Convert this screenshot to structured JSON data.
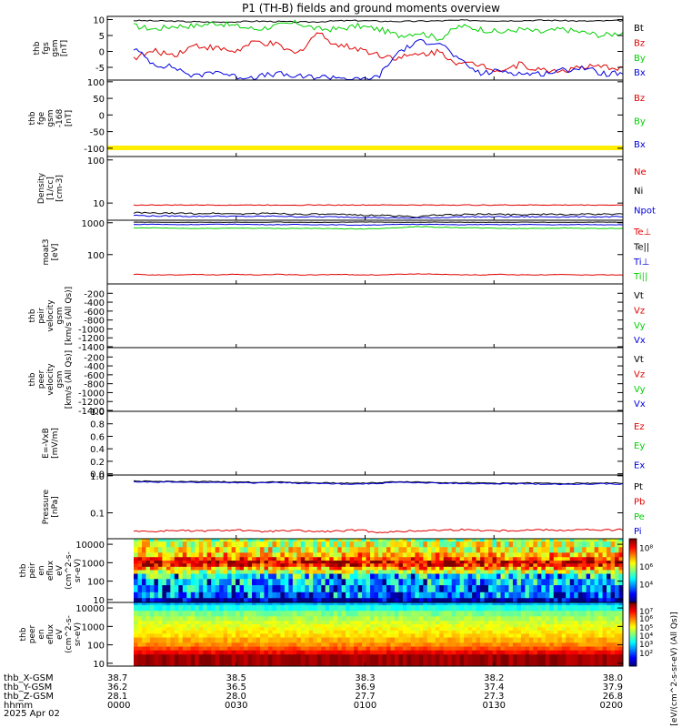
{
  "title": "P1 (TH-B) fields and ground moments overview",
  "colors": {
    "black": "#000000",
    "red": "#e00000",
    "green": "#00d000",
    "blue": "#0000e0",
    "yellow": "#ffee00"
  },
  "chart_data": [
    {
      "type": "line",
      "ylabel_lines": [
        "thb",
        "fgs",
        "gsm",
        "[nT]"
      ],
      "ylim": [
        -9,
        11
      ],
      "yticks": [
        {
          "v": 10,
          "label": "10"
        },
        {
          "v": 5,
          "label": "5"
        },
        {
          "v": 0,
          "label": "0"
        },
        {
          "v": -5,
          "label": "-5"
        }
      ],
      "series": [
        {
          "name": "Bt",
          "color": "black",
          "values": [
            9.7,
            9.6,
            9.5,
            9.3,
            9.2,
            9.3,
            9.5,
            9.4,
            9.2,
            9.3,
            9.6,
            9.7,
            9.5,
            9.4,
            9.5,
            9.6,
            9.8,
            9.7,
            9.6,
            9.7,
            9.8,
            9.7,
            9.5,
            9.6,
            9.7
          ],
          "noise": 0.2
        },
        {
          "name": "Bz",
          "color": "red",
          "values": [
            -2,
            0,
            -1,
            2,
            1,
            0,
            3,
            2,
            -1,
            6,
            2,
            1,
            -1,
            -2,
            -1,
            0,
            -4,
            -4,
            -6,
            -4,
            -6,
            -6,
            -5,
            -5,
            -5
          ],
          "noise": 1.0
        },
        {
          "name": "By",
          "color": "green",
          "values": [
            8,
            7,
            8,
            8,
            9,
            8,
            7,
            8,
            9,
            7,
            7,
            8,
            7,
            5,
            6,
            4,
            8,
            7,
            6,
            7,
            6,
            7,
            6,
            5,
            6
          ],
          "noise": 0.9
        },
        {
          "name": "Bx",
          "color": "blue",
          "values": [
            1,
            -4,
            -5,
            -8,
            -6,
            -8,
            -8,
            -7,
            -8,
            -8,
            -8,
            -9,
            -8,
            0,
            3,
            3,
            -3,
            -7,
            -6,
            -7,
            -7,
            -6,
            -5,
            -7,
            -7
          ],
          "noise": 0.9
        }
      ]
    },
    {
      "type": "line",
      "ylabel_lines": [
        "thb",
        "fge",
        "gsm",
        "-168",
        "[nT]"
      ],
      "ylim": [
        -125,
        105
      ],
      "yticks": [
        {
          "v": 100,
          "label": "100"
        },
        {
          "v": 50,
          "label": "50"
        },
        {
          "v": 0,
          "label": "0"
        },
        {
          "v": -50,
          "label": "-50"
        },
        {
          "v": -100,
          "label": "-100"
        }
      ],
      "series": [
        {
          "name": "Bz",
          "color": "red",
          "values": []
        },
        {
          "name": "By",
          "color": "green",
          "values": []
        },
        {
          "name": "Bx",
          "color": "blue",
          "values": []
        }
      ]
    },
    {
      "type": "line",
      "ylabel_lines": [
        "Density",
        "[1/cc]",
        "[cm-3]"
      ],
      "yscale": "log",
      "ylim": [
        4,
        120
      ],
      "yticks": [
        {
          "v": 100,
          "label": "100"
        },
        {
          "v": 10,
          "label": "10"
        }
      ],
      "series": [
        {
          "name": "Ne",
          "color": "red",
          "values": [
            9,
            9,
            9,
            9,
            9,
            9,
            9,
            9,
            9,
            9,
            9,
            9,
            9,
            9,
            9,
            9,
            9,
            9,
            9,
            9,
            9,
            9,
            9,
            9,
            9
          ],
          "noise": 0.02
        },
        {
          "name": "Ni",
          "color": "black",
          "values": [
            6,
            5.8,
            5.8,
            5.7,
            5.8,
            5.6,
            5.7,
            5.8,
            5.5,
            5.5,
            5.4,
            5.3,
            5.2,
            5.0,
            4.8,
            5.3,
            5.4,
            5.5,
            5.5,
            5.4,
            5.5,
            5.4,
            5.5,
            5.5,
            5.5
          ],
          "noise": 0.04
        },
        {
          "name": "Npot",
          "color": "blue",
          "values": [
            5.2,
            5,
            5,
            4.9,
            5,
            4.9,
            4.9,
            5,
            4.8,
            4.8,
            4.8,
            4.7,
            4.6,
            4.5,
            4.5,
            4.6,
            4.8,
            4.8,
            4.8,
            4.8,
            4.8,
            4.8,
            4.8,
            4.8,
            4.8
          ],
          "noise": 0.03
        }
      ]
    },
    {
      "type": "line",
      "ylabel_lines": [
        "moat3",
        "[eV]"
      ],
      "yscale": "log",
      "ylim": [
        12,
        1200
      ],
      "yticks": [
        {
          "v": 1000,
          "label": "1000"
        },
        {
          "v": 100,
          "label": "100"
        }
      ],
      "series": [
        {
          "name": "Te⊥",
          "color": "red",
          "values": [
            24,
            23,
            23,
            24,
            23,
            24,
            23,
            24,
            23,
            23,
            24,
            23,
            23,
            24,
            25,
            24,
            23,
            23,
            24,
            23,
            23,
            24,
            23,
            23,
            23
          ],
          "noise": 0.02
        },
        {
          "name": "Te||",
          "color": "black",
          "values": [
            1050,
            1040,
            1030,
            1040,
            1030,
            1040,
            1030,
            1050,
            1040,
            1030,
            1040,
            1050,
            1060,
            1030,
            1040,
            1050,
            1040,
            1030,
            1040,
            1050,
            1040,
            1030,
            1040,
            1050,
            1040
          ],
          "noise": 0.01
        },
        {
          "name": "Ti⊥",
          "color": "blue",
          "values": [
            880,
            900,
            870,
            880,
            890,
            900,
            880,
            870,
            880,
            870,
            860,
            840,
            860,
            880,
            900,
            880,
            860,
            880,
            870,
            880,
            870,
            860,
            880,
            870,
            870
          ],
          "noise": 0.02
        },
        {
          "name": "Ti||",
          "color": "green",
          "values": [
            680,
            690,
            670,
            660,
            670,
            680,
            670,
            660,
            670,
            660,
            650,
            640,
            660,
            700,
            760,
            720,
            700,
            680,
            670,
            660,
            670,
            680,
            670,
            660,
            660
          ],
          "noise": 0.02
        }
      ]
    },
    {
      "type": "line",
      "ylabel_lines": [
        "thb",
        "peir",
        "velocity",
        "gsm",
        "[km/s (All Qs)]"
      ],
      "ylim": [
        -1420,
        10
      ],
      "yticks": [
        {
          "v": -200,
          "label": "-200"
        },
        {
          "v": -400,
          "label": "-400"
        },
        {
          "v": -600,
          "label": "-600"
        },
        {
          "v": -800,
          "label": "-800"
        },
        {
          "v": -1000,
          "label": "-1000"
        },
        {
          "v": -1200,
          "label": "-1200"
        },
        {
          "v": -1400,
          "label": "-1400"
        }
      ],
      "series": [
        {
          "name": "Vt",
          "color": "black",
          "values": []
        },
        {
          "name": "Vz",
          "color": "red",
          "values": []
        },
        {
          "name": "Vy",
          "color": "green",
          "values": []
        },
        {
          "name": "Vx",
          "color": "blue",
          "values": []
        }
      ]
    },
    {
      "type": "line",
      "ylabel_lines": [
        "thb",
        "peer",
        "velocity",
        "gsm",
        "[km/s (All Qs)]"
      ],
      "ylim": [
        -1420,
        10
      ],
      "yticks": [
        {
          "v": -200,
          "label": "-200"
        },
        {
          "v": -400,
          "label": "-400"
        },
        {
          "v": -600,
          "label": "-600"
        },
        {
          "v": -800,
          "label": "-800"
        },
        {
          "v": -1000,
          "label": "-1000"
        },
        {
          "v": -1200,
          "label": "-1200"
        },
        {
          "v": -1400,
          "label": "-1400"
        }
      ],
      "series": [
        {
          "name": "Vt",
          "color": "black",
          "values": []
        },
        {
          "name": "Vz",
          "color": "red",
          "values": []
        },
        {
          "name": "Vy",
          "color": "green",
          "values": []
        },
        {
          "name": "Vx",
          "color": "blue",
          "values": []
        }
      ]
    },
    {
      "type": "line",
      "ylabel_lines": [
        "E=-VxB",
        "[mV/m]"
      ],
      "ylim": [
        -0.02,
        1.0
      ],
      "yticks": [
        {
          "v": 1.0,
          "label": "1.0"
        },
        {
          "v": 0.8,
          "label": "0.8"
        },
        {
          "v": 0.6,
          "label": "0.6"
        },
        {
          "v": 0.4,
          "label": "0.4"
        },
        {
          "v": 0.2,
          "label": "0.2"
        },
        {
          "v": 0.0,
          "label": "0.0"
        }
      ],
      "series": [
        {
          "name": "Ez",
          "color": "red",
          "values": []
        },
        {
          "name": "Ey",
          "color": "green",
          "values": []
        },
        {
          "name": "Ex",
          "color": "blue",
          "values": []
        }
      ]
    },
    {
      "type": "line",
      "ylabel_lines": [
        "Pressure",
        "[nPa]"
      ],
      "yscale": "log",
      "ylim": [
        0.02,
        1.05
      ],
      "yticks": [
        {
          "v": 1.0,
          "label": "1.0"
        },
        {
          "v": 0.1,
          "label": "0.1"
        }
      ],
      "series": [
        {
          "name": "Pt",
          "color": "black",
          "values": [
            0.72,
            0.7,
            0.71,
            0.69,
            0.7,
            0.68,
            0.67,
            0.69,
            0.66,
            0.65,
            0.64,
            0.63,
            0.65,
            0.7,
            0.68,
            0.66,
            0.65,
            0.64,
            0.63,
            0.64,
            0.63,
            0.62,
            0.63,
            0.64,
            0.63
          ],
          "noise": 0.03
        },
        {
          "name": "Pb",
          "color": "red",
          "values": [
            0.033,
            0.031,
            0.034,
            0.032,
            0.033,
            0.035,
            0.031,
            0.032,
            0.033,
            0.031,
            0.032,
            0.034,
            0.03,
            0.031,
            0.033,
            0.034,
            0.035,
            0.034,
            0.033,
            0.034,
            0.035,
            0.034,
            0.035,
            0.034,
            0.035
          ],
          "noise": 0.06
        },
        {
          "name": "Pe",
          "color": "green",
          "values": []
        },
        {
          "name": "Pi",
          "color": "blue",
          "values": [
            0.69,
            0.67,
            0.68,
            0.66,
            0.67,
            0.65,
            0.64,
            0.66,
            0.63,
            0.62,
            0.61,
            0.6,
            0.62,
            0.67,
            0.65,
            0.63,
            0.62,
            0.61,
            0.6,
            0.61,
            0.6,
            0.59,
            0.6,
            0.61,
            0.6
          ],
          "noise": 0.03
        }
      ]
    },
    {
      "type": "heatmap",
      "ylabel_lines": [
        "thb",
        "peir",
        "en",
        "eflux",
        "eV",
        "(cm^2-s-",
        "sr-eV)"
      ],
      "yscale": "log",
      "ylim": [
        7,
        20000
      ],
      "yticks": [
        {
          "v": 10000,
          "label": "10000"
        },
        {
          "v": 1000,
          "label": "1000"
        },
        {
          "v": 100,
          "label": "100"
        },
        {
          "v": 10,
          "label": "10"
        }
      ],
      "bands": [
        {
          "from": 14000,
          "to": 20000,
          "level": 0.55
        },
        {
          "from": 7000,
          "to": 14000,
          "level": 0.58
        },
        {
          "from": 3500,
          "to": 7000,
          "level": 0.62
        },
        {
          "from": 2000,
          "to": 3500,
          "level": 0.7
        },
        {
          "from": 1300,
          "to": 2000,
          "level": 0.8
        },
        {
          "from": 900,
          "to": 1300,
          "level": 0.93
        },
        {
          "from": 600,
          "to": 900,
          "level": 0.85
        },
        {
          "from": 400,
          "to": 600,
          "level": 0.72
        },
        {
          "from": 250,
          "to": 400,
          "level": 0.55
        },
        {
          "from": 130,
          "to": 250,
          "level": 0.42
        },
        {
          "from": 60,
          "to": 130,
          "level": 0.35
        },
        {
          "from": 25,
          "to": 60,
          "level": 0.3
        },
        {
          "from": 12,
          "to": 25,
          "level": 0.28
        },
        {
          "from": 7,
          "to": 12,
          "level": 0.05
        }
      ],
      "cbar_ticks": [
        {
          "frac": 0.85,
          "label": "10⁸"
        },
        {
          "frac": 0.56,
          "label": "10⁶"
        },
        {
          "frac": 0.28,
          "label": "10⁴"
        }
      ]
    },
    {
      "type": "heatmap",
      "ylabel_lines": [
        "thb",
        "peer",
        "en",
        "eflux",
        "eV",
        "(cm^2-s-",
        "sr-eV)"
      ],
      "yscale": "log",
      "ylim": [
        7,
        20000
      ],
      "yticks": [
        {
          "v": 10000,
          "label": "10000"
        },
        {
          "v": 1000,
          "label": "1000"
        },
        {
          "v": 100,
          "label": "100"
        },
        {
          "v": 10,
          "label": "10"
        }
      ],
      "bands": [
        {
          "from": 14000,
          "to": 20000,
          "level": 0.3
        },
        {
          "from": 7000,
          "to": 14000,
          "level": 0.4
        },
        {
          "from": 3500,
          "to": 7000,
          "level": 0.5
        },
        {
          "from": 2000,
          "to": 3500,
          "level": 0.55
        },
        {
          "from": 1300,
          "to": 2000,
          "level": 0.58
        },
        {
          "from": 900,
          "to": 1300,
          "level": 0.6
        },
        {
          "from": 600,
          "to": 900,
          "level": 0.62
        },
        {
          "from": 400,
          "to": 600,
          "level": 0.64
        },
        {
          "from": 250,
          "to": 400,
          "level": 0.66
        },
        {
          "from": 130,
          "to": 250,
          "level": 0.7
        },
        {
          "from": 80,
          "to": 130,
          "level": 0.74
        },
        {
          "from": 50,
          "to": 80,
          "level": 0.8
        },
        {
          "from": 30,
          "to": 50,
          "level": 0.88
        },
        {
          "from": 7,
          "to": 30,
          "level": 0.97
        }
      ],
      "cbar_ticks": [
        {
          "frac": 0.86,
          "label": "10⁷"
        },
        {
          "frac": 0.74,
          "label": "10⁶"
        },
        {
          "frac": 0.6,
          "label": "10⁵"
        },
        {
          "frac": 0.47,
          "label": "10⁴"
        },
        {
          "frac": 0.34,
          "label": "10³"
        },
        {
          "frac": 0.2,
          "label": "10²"
        }
      ]
    }
  ],
  "colorbar_label": "[eV/(cm^2-s-sr-eV) (All Qs)]",
  "xaxis": {
    "row_labels": [
      "thb_X-GSM",
      "thb_Y-GSM",
      "thb_Z-GSM",
      "hhmm"
    ],
    "date": "2025 Apr 02",
    "ticks": [
      {
        "frac": 0.0,
        "values": [
          "38.7",
          "36.2",
          "28.1",
          "0000"
        ]
      },
      {
        "frac": 0.25,
        "values": [
          "38.5",
          "36.5",
          "28.0",
          "0030"
        ]
      },
      {
        "frac": 0.5,
        "values": [
          "38.3",
          "36.9",
          "27.7",
          "0100"
        ]
      },
      {
        "frac": 0.75,
        "values": [
          "38.2",
          "37.4",
          "27.3",
          "0130"
        ]
      },
      {
        "frac": 1.0,
        "values": [
          "38.0",
          "37.9",
          "26.8",
          "0200"
        ]
      }
    ]
  }
}
